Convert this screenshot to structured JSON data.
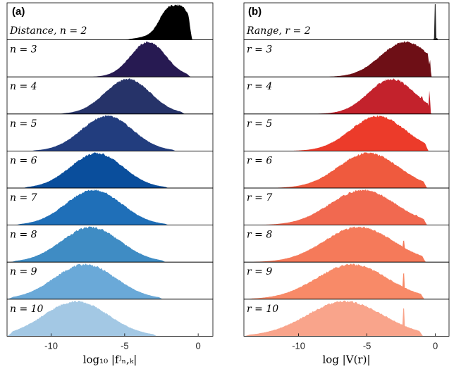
{
  "chart_data": [
    {
      "type": "area",
      "panel_letter": "(a)",
      "xlabel": "log₁₀ |fʲₙ,ₖ|",
      "xlim": [
        -13,
        1
      ],
      "xticks": [
        -10,
        -5,
        0
      ],
      "xtick_labels": [
        "-10",
        "-5",
        "0"
      ],
      "rows": [
        {
          "label": "Distance, n = 2",
          "color": "#000000",
          "shape": "peaks",
          "mu": -2.3,
          "sigma": 1.2,
          "peaks": [
            [
              -2.1,
              0.85
            ],
            [
              -1.0,
              1.0
            ]
          ],
          "xmin": -5.0,
          "xmax": -0.4
        },
        {
          "label": "n = 3",
          "color": "#271a52",
          "mu": -3.4,
          "sigma": 1.2,
          "xmin": -7.5,
          "xmax": -0.5
        },
        {
          "label": "n = 4",
          "color": "#263369",
          "mu": -4.8,
          "sigma": 1.55,
          "xmin": -9.5,
          "xmax": -0.9
        },
        {
          "label": "n = 5",
          "color": "#223d7e",
          "mu": -6.2,
          "sigma": 1.75,
          "xmin": -11.5,
          "xmax": -1.5
        },
        {
          "label": "n = 6",
          "color": "#0a4e9c",
          "mu": -6.9,
          "sigma": 1.8,
          "xmin": -12.0,
          "xmax": -2.0
        },
        {
          "label": "n = 7",
          "color": "#1f6fb8",
          "mu": -7.1,
          "sigma": 1.9,
          "xmin": -12.5,
          "xmax": -2.0
        },
        {
          "label": "n = 8",
          "color": "#3f8cc4",
          "mu": -7.3,
          "sigma": 2.0,
          "xmin": -12.8,
          "xmax": -2.2
        },
        {
          "label": "n = 9",
          "color": "#6aa9d8",
          "mu": -7.7,
          "sigma": 2.1,
          "xmin": -13.0,
          "xmax": -2.4
        },
        {
          "label": "n = 10",
          "color": "#a3c8e4",
          "mu": -8.3,
          "sigma": 2.2,
          "xmin": -13.0,
          "xmax": -2.8
        }
      ]
    },
    {
      "type": "area",
      "panel_letter": "(b)",
      "xlabel": "log |V(r)|",
      "xlim": [
        -14,
        1
      ],
      "xticks": [
        -10,
        -5,
        0
      ],
      "xtick_labels": [
        "-10",
        "-5",
        "0"
      ],
      "rows": [
        {
          "label": "Range, r = 2",
          "color": "#2b2b2b",
          "shape": "spike",
          "spike_x": 0.0,
          "xmin": -0.3,
          "xmax": 0.2
        },
        {
          "label": "r = 3",
          "color": "#6e0f16",
          "mu": -2.2,
          "sigma": 1.8,
          "peaks": [
            [
              -2.1,
              1.0
            ],
            [
              -1.2,
              0.75
            ]
          ],
          "spikes": [
            [
              -0.35,
              1.45
            ]
          ],
          "xmin": -8.0,
          "xmax": -0.3
        },
        {
          "label": "r = 4",
          "color": "#c3222c",
          "mu": -3.2,
          "sigma": 1.7,
          "spikes": [
            [
              -1.5,
              0.35
            ],
            [
              -1.0,
              0.5
            ],
            [
              -0.4,
              1.15
            ]
          ],
          "xmin": -9.5,
          "xmax": -0.3
        },
        {
          "label": "r = 5",
          "color": "#ec3b2a",
          "mu": -4.2,
          "sigma": 2.0,
          "spikes": [
            [
              -2.2,
              0.2
            ],
            [
              -1.8,
              0.15
            ],
            [
              -1.4,
              0.2
            ],
            [
              -1.0,
              0.15
            ]
          ],
          "xmin": -11.5,
          "xmax": -0.5
        },
        {
          "label": "r = 6",
          "color": "#ef5a3e",
          "mu": -4.9,
          "sigma": 2.2,
          "spikes": [
            [
              -2.3,
              0.35
            ],
            [
              -1.9,
              0.3
            ],
            [
              -1.5,
              0.3
            ],
            [
              -1.0,
              0.2
            ]
          ],
          "xmin": -12.5,
          "xmax": -0.6
        },
        {
          "label": "r = 7",
          "color": "#f16950",
          "mu": -5.3,
          "sigma": 2.4,
          "spikes": [
            [
              -2.3,
              0.45
            ],
            [
              -1.9,
              0.3
            ],
            [
              -1.4,
              0.3
            ],
            [
              -1.0,
              0.2
            ]
          ],
          "xmin": -13.0,
          "xmax": -0.6
        },
        {
          "label": "r = 8",
          "color": "#f57a5a",
          "mu": -5.6,
          "sigma": 2.5,
          "spikes": [
            [
              -2.3,
              0.6
            ],
            [
              -1.9,
              0.25
            ],
            [
              -1.4,
              0.2
            ]
          ],
          "xmin": -13.5,
          "xmax": -0.7
        },
        {
          "label": "r = 9",
          "color": "#f88a68",
          "mu": -6.1,
          "sigma": 2.6,
          "spikes": [
            [
              -2.3,
              0.75
            ],
            [
              -1.9,
              0.2
            ],
            [
              -1.4,
              0.15
            ]
          ],
          "xmin": -13.8,
          "xmax": -0.8
        },
        {
          "label": "r = 10",
          "color": "#f9a48b",
          "mu": -6.6,
          "sigma": 2.8,
          "spikes": [
            [
              -2.3,
              0.8
            ],
            [
              -1.9,
              0.2
            ]
          ],
          "xmin": -14.0,
          "xmax": -0.9
        }
      ]
    }
  ]
}
